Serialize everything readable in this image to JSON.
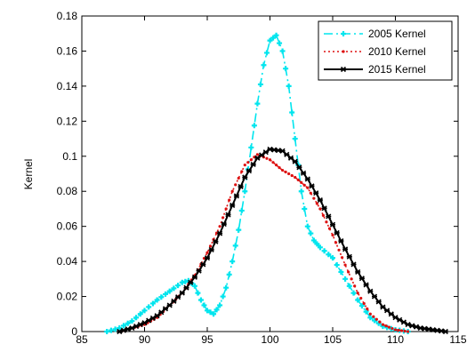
{
  "chart_data": {
    "type": "line",
    "title": "",
    "xlabel": "",
    "ylabel": "Kernel",
    "xlim": [
      85,
      115
    ],
    "ylim": [
      0,
      0.18
    ],
    "xticks": [
      "85",
      "90",
      "95",
      "100",
      "105",
      "110",
      "115"
    ],
    "yticks": [
      "0",
      "0.02",
      "0.04",
      "0.06",
      "0.08",
      "0.1",
      "0.12",
      "0.14",
      "0.16",
      "0.18"
    ],
    "grid": false,
    "legend_position": "top-right",
    "series": [
      {
        "name": "2005 Kernel",
        "color": "#00e5ee",
        "line_style": "dash-dot",
        "marker": "plus",
        "points": [
          [
            87,
            0
          ],
          [
            88,
            0.002
          ],
          [
            89,
            0.006
          ],
          [
            90,
            0.012
          ],
          [
            91,
            0.018
          ],
          [
            92,
            0.023
          ],
          [
            93,
            0.028
          ],
          [
            93.5,
            0.029
          ],
          [
            94,
            0.026
          ],
          [
            94.5,
            0.018
          ],
          [
            95,
            0.012
          ],
          [
            95.5,
            0.01
          ],
          [
            96,
            0.015
          ],
          [
            96.5,
            0.025
          ],
          [
            97,
            0.04
          ],
          [
            97.5,
            0.058
          ],
          [
            98,
            0.08
          ],
          [
            98.5,
            0.105
          ],
          [
            99,
            0.13
          ],
          [
            99.5,
            0.152
          ],
          [
            100,
            0.166
          ],
          [
            100.5,
            0.169
          ],
          [
            101,
            0.16
          ],
          [
            101.5,
            0.14
          ],
          [
            102,
            0.11
          ],
          [
            102.5,
            0.08
          ],
          [
            103,
            0.06
          ],
          [
            103.5,
            0.052
          ],
          [
            104,
            0.048
          ],
          [
            105,
            0.042
          ],
          [
            106,
            0.03
          ],
          [
            107,
            0.018
          ],
          [
            108,
            0.008
          ],
          [
            109,
            0.003
          ],
          [
            110,
            0.001
          ],
          [
            111,
            0
          ]
        ]
      },
      {
        "name": "2010 Kernel",
        "color": "#dd1111",
        "line_style": "dotted",
        "marker": "dot",
        "points": [
          [
            88,
            0
          ],
          [
            89,
            0.002
          ],
          [
            90,
            0.004
          ],
          [
            91,
            0.008
          ],
          [
            92,
            0.015
          ],
          [
            93,
            0.022
          ],
          [
            94,
            0.032
          ],
          [
            95,
            0.045
          ],
          [
            96,
            0.06
          ],
          [
            97,
            0.08
          ],
          [
            98,
            0.095
          ],
          [
            99,
            0.101
          ],
          [
            100,
            0.098
          ],
          [
            101,
            0.092
          ],
          [
            102,
            0.088
          ],
          [
            103,
            0.082
          ],
          [
            104,
            0.07
          ],
          [
            105,
            0.055
          ],
          [
            106,
            0.038
          ],
          [
            107,
            0.022
          ],
          [
            108,
            0.01
          ],
          [
            109,
            0.004
          ],
          [
            110,
            0.001
          ],
          [
            111,
            0
          ]
        ]
      },
      {
        "name": "2015 Kernel",
        "color": "#000000",
        "line_style": "solid",
        "marker": "cross",
        "points": [
          [
            88,
            0
          ],
          [
            89,
            0.002
          ],
          [
            90,
            0.005
          ],
          [
            91,
            0.009
          ],
          [
            92,
            0.015
          ],
          [
            93,
            0.022
          ],
          [
            94,
            0.031
          ],
          [
            95,
            0.042
          ],
          [
            96,
            0.056
          ],
          [
            97,
            0.072
          ],
          [
            98,
            0.088
          ],
          [
            99,
            0.099
          ],
          [
            100,
            0.104
          ],
          [
            101,
            0.103
          ],
          [
            102,
            0.097
          ],
          [
            103,
            0.087
          ],
          [
            104,
            0.075
          ],
          [
            105,
            0.061
          ],
          [
            106,
            0.047
          ],
          [
            107,
            0.034
          ],
          [
            108,
            0.023
          ],
          [
            109,
            0.014
          ],
          [
            110,
            0.008
          ],
          [
            111,
            0.004
          ],
          [
            112,
            0.002
          ],
          [
            113,
            0.001
          ],
          [
            114,
            0
          ]
        ]
      }
    ]
  }
}
